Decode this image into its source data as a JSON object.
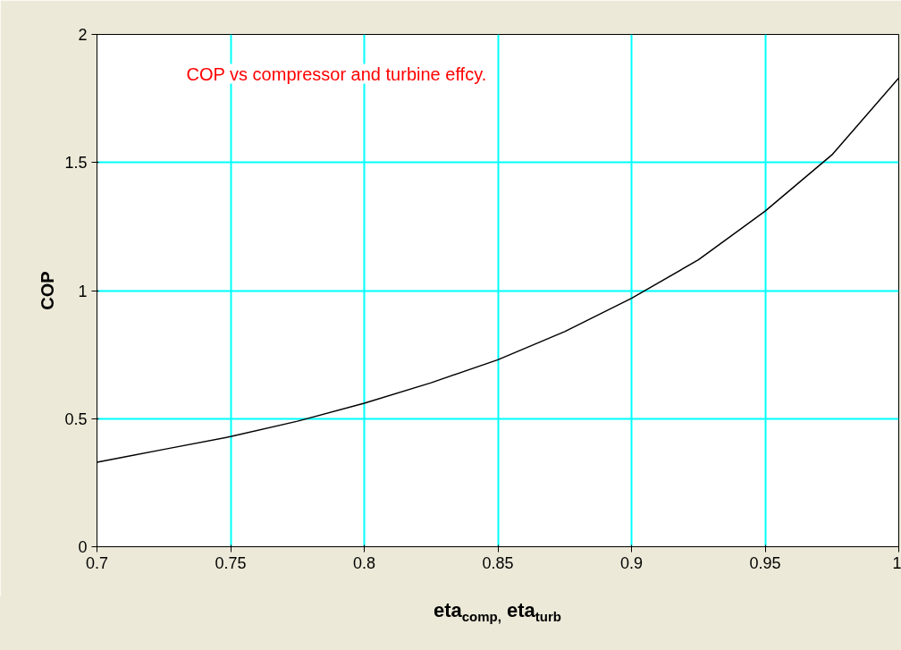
{
  "chart_data": {
    "type": "line",
    "title": "COP vs compressor and turbine effcy.",
    "xlabel": "eta$_{comp,}$ eta$_{turb}$",
    "ylabel": "COP",
    "x": [
      0.7,
      0.725,
      0.75,
      0.775,
      0.8,
      0.825,
      0.85,
      0.875,
      0.9,
      0.925,
      0.95,
      0.975,
      1.0
    ],
    "series": [
      {
        "color": "#000000",
        "values": [
          0.33,
          0.38,
          0.43,
          0.49,
          0.56,
          0.64,
          0.73,
          0.84,
          0.97,
          1.12,
          1.31,
          1.53,
          1.83
        ]
      }
    ],
    "xlim": [
      0.7,
      1.0
    ],
    "ylim": [
      0,
      2
    ],
    "xticks": [
      0.7,
      0.75,
      0.8,
      0.85,
      0.9,
      0.95,
      1
    ],
    "yticks": [
      0,
      0.5,
      1,
      1.5,
      2
    ],
    "grid": true,
    "marker": "none",
    "line_style": "solid"
  }
}
